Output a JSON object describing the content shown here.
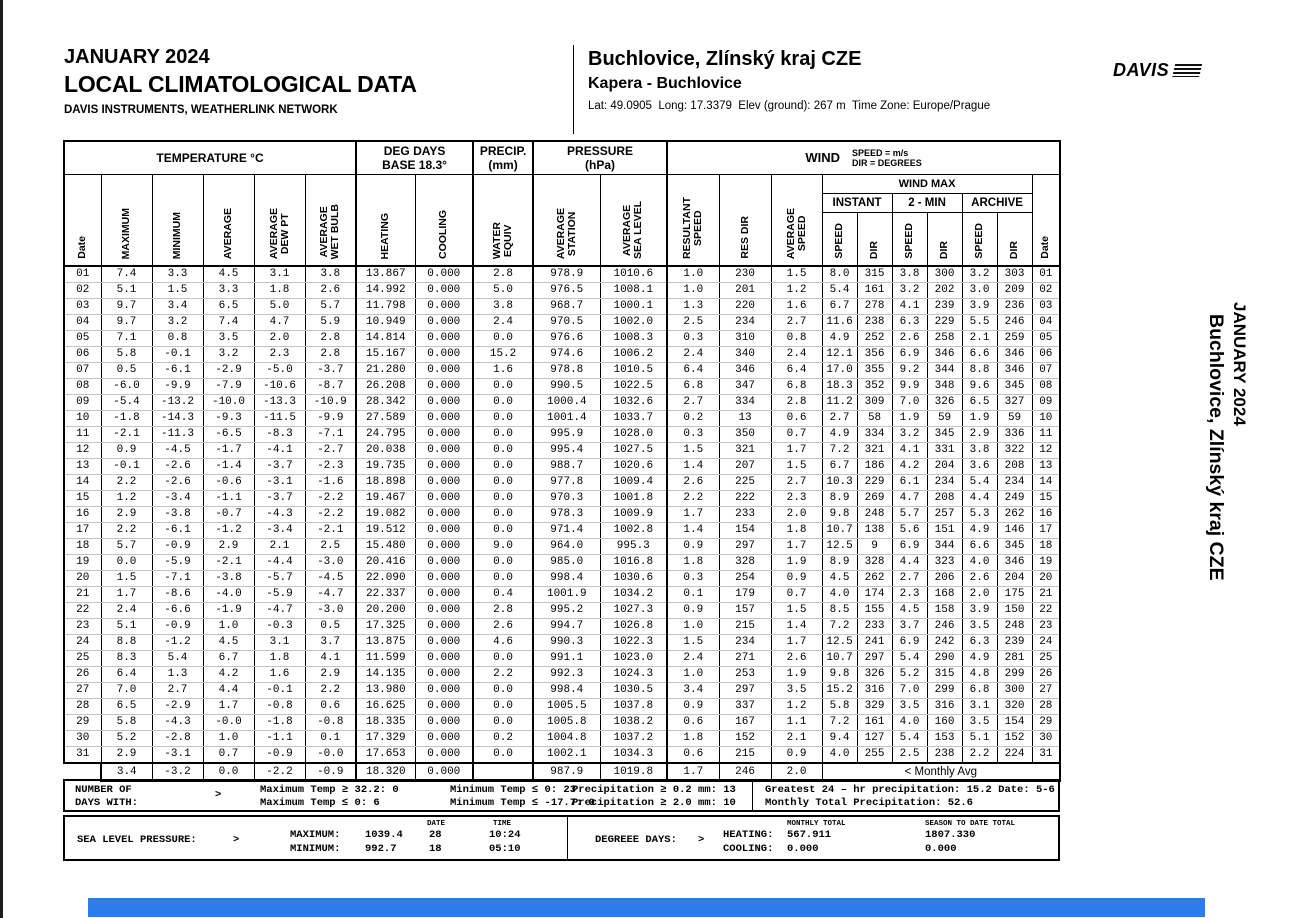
{
  "header": {
    "month": "JANUARY 2024",
    "title": "LOCAL CLIMATOLOGICAL DATA",
    "subtitle": "DAVIS INSTRUMENTS, WEATHERLINK NETWORK",
    "station_name": "Buchlovice, Zlínský kraj CZE",
    "station_sub": "Kapera - Buchlovice",
    "station_meta": "Lat: 49.0905  Long: 17.3379  Elev (ground): 267 m  Time Zone: Europe/Prague",
    "logo_text": "DAVIS"
  },
  "table": {
    "groups": {
      "temperature": "TEMPERATURE °C",
      "deg_days": "DEG DAYS\nBASE 18.3°",
      "precip": "PRECIP.\n(mm)",
      "pressure": "PRESSURE\n(hPa)",
      "wind": "WIND",
      "wind_units": "SPEED = m/s\nDIR = DEGREES"
    },
    "columns": {
      "date": "Date",
      "maximum": "MAXIMUM",
      "minimum": "MINIMUM",
      "average": "AVERAGE",
      "avg_dew_pt": "AVERAGE\nDEW PT",
      "avg_wet_bulb": "AVERAGE\nWET BULB",
      "heating": "HEATING",
      "cooling": "COOLING",
      "water_equiv": "WATER\nEQUIV",
      "avg_station": "AVERAGE\nSTATION",
      "avg_sea_level": "AVERAGE\nSEA LEVEL",
      "resultant_speed": "RESULTANT\nSPEED",
      "res_dir": "RES DIR",
      "avg_speed": "AVERAGE\nSPEED",
      "wind_max": "WIND MAX",
      "instant": "INSTANT",
      "two_min": "2 - MIN",
      "archive": "ARCHIVE",
      "speed": "SPEED",
      "dir": "DIR"
    },
    "rows": [
      [
        "01",
        "7.4",
        "3.3",
        "4.5",
        "3.1",
        "3.8",
        "13.867",
        "0.000",
        "2.8",
        "978.9",
        "1010.6",
        "1.0",
        "230",
        "1.5",
        "8.0",
        "315",
        "3.8",
        "300",
        "3.2",
        "303",
        "01"
      ],
      [
        "02",
        "5.1",
        "1.5",
        "3.3",
        "1.8",
        "2.6",
        "14.992",
        "0.000",
        "5.0",
        "976.5",
        "1008.1",
        "1.0",
        "201",
        "1.2",
        "5.4",
        "161",
        "3.2",
        "202",
        "3.0",
        "209",
        "02"
      ],
      [
        "03",
        "9.7",
        "3.4",
        "6.5",
        "5.0",
        "5.7",
        "11.798",
        "0.000",
        "3.8",
        "968.7",
        "1000.1",
        "1.3",
        "220",
        "1.6",
        "6.7",
        "278",
        "4.1",
        "239",
        "3.9",
        "236",
        "03"
      ],
      [
        "04",
        "9.7",
        "3.2",
        "7.4",
        "4.7",
        "5.9",
        "10.949",
        "0.000",
        "2.4",
        "970.5",
        "1002.0",
        "2.5",
        "234",
        "2.7",
        "11.6",
        "238",
        "6.3",
        "229",
        "5.5",
        "246",
        "04"
      ],
      [
        "05",
        "7.1",
        "0.8",
        "3.5",
        "2.0",
        "2.8",
        "14.814",
        "0.000",
        "0.0",
        "976.6",
        "1008.3",
        "0.3",
        "310",
        "0.8",
        "4.9",
        "252",
        "2.6",
        "258",
        "2.1",
        "259",
        "05"
      ],
      [
        "06",
        "5.8",
        "-0.1",
        "3.2",
        "2.3",
        "2.8",
        "15.167",
        "0.000",
        "15.2",
        "974.6",
        "1006.2",
        "2.4",
        "340",
        "2.4",
        "12.1",
        "356",
        "6.9",
        "346",
        "6.6",
        "346",
        "06"
      ],
      [
        "07",
        "0.5",
        "-6.1",
        "-2.9",
        "-5.0",
        "-3.7",
        "21.280",
        "0.000",
        "1.6",
        "978.8",
        "1010.5",
        "6.4",
        "346",
        "6.4",
        "17.0",
        "355",
        "9.2",
        "344",
        "8.8",
        "346",
        "07"
      ],
      [
        "08",
        "-6.0",
        "-9.9",
        "-7.9",
        "-10.6",
        "-8.7",
        "26.208",
        "0.000",
        "0.0",
        "990.5",
        "1022.5",
        "6.8",
        "347",
        "6.8",
        "18.3",
        "352",
        "9.9",
        "348",
        "9.6",
        "345",
        "08"
      ],
      [
        "09",
        "-5.4",
        "-13.2",
        "-10.0",
        "-13.3",
        "-10.9",
        "28.342",
        "0.000",
        "0.0",
        "1000.4",
        "1032.6",
        "2.7",
        "334",
        "2.8",
        "11.2",
        "309",
        "7.0",
        "326",
        "6.5",
        "327",
        "09"
      ],
      [
        "10",
        "-1.8",
        "-14.3",
        "-9.3",
        "-11.5",
        "-9.9",
        "27.589",
        "0.000",
        "0.0",
        "1001.4",
        "1033.7",
        "0.2",
        "13",
        "0.6",
        "2.7",
        "58",
        "1.9",
        "59",
        "1.9",
        "59",
        "10"
      ],
      [
        "11",
        "-2.1",
        "-11.3",
        "-6.5",
        "-8.3",
        "-7.1",
        "24.795",
        "0.000",
        "0.0",
        "995.9",
        "1028.0",
        "0.3",
        "350",
        "0.7",
        "4.9",
        "334",
        "3.2",
        "345",
        "2.9",
        "336",
        "11"
      ],
      [
        "12",
        "0.9",
        "-4.5",
        "-1.7",
        "-4.1",
        "-2.7",
        "20.038",
        "0.000",
        "0.0",
        "995.4",
        "1027.5",
        "1.5",
        "321",
        "1.7",
        "7.2",
        "321",
        "4.1",
        "331",
        "3.8",
        "322",
        "12"
      ],
      [
        "13",
        "-0.1",
        "-2.6",
        "-1.4",
        "-3.7",
        "-2.3",
        "19.735",
        "0.000",
        "0.0",
        "988.7",
        "1020.6",
        "1.4",
        "207",
        "1.5",
        "6.7",
        "186",
        "4.2",
        "204",
        "3.6",
        "208",
        "13"
      ],
      [
        "14",
        "2.2",
        "-2.6",
        "-0.6",
        "-3.1",
        "-1.6",
        "18.898",
        "0.000",
        "0.0",
        "977.8",
        "1009.4",
        "2.6",
        "225",
        "2.7",
        "10.3",
        "229",
        "6.1",
        "234",
        "5.4",
        "234",
        "14"
      ],
      [
        "15",
        "1.2",
        "-3.4",
        "-1.1",
        "-3.7",
        "-2.2",
        "19.467",
        "0.000",
        "0.0",
        "970.3",
        "1001.8",
        "2.2",
        "222",
        "2.3",
        "8.9",
        "269",
        "4.7",
        "208",
        "4.4",
        "249",
        "15"
      ],
      [
        "16",
        "2.9",
        "-3.8",
        "-0.7",
        "-4.3",
        "-2.2",
        "19.082",
        "0.000",
        "0.0",
        "978.3",
        "1009.9",
        "1.7",
        "233",
        "2.0",
        "9.8",
        "248",
        "5.7",
        "257",
        "5.3",
        "262",
        "16"
      ],
      [
        "17",
        "2.2",
        "-6.1",
        "-1.2",
        "-3.4",
        "-2.1",
        "19.512",
        "0.000",
        "0.0",
        "971.4",
        "1002.8",
        "1.4",
        "154",
        "1.8",
        "10.7",
        "138",
        "5.6",
        "151",
        "4.9",
        "146",
        "17"
      ],
      [
        "18",
        "5.7",
        "-0.9",
        "2.9",
        "2.1",
        "2.5",
        "15.480",
        "0.000",
        "9.0",
        "964.0",
        "995.3",
        "0.9",
        "297",
        "1.7",
        "12.5",
        "9",
        "6.9",
        "344",
        "6.6",
        "345",
        "18"
      ],
      [
        "19",
        "0.0",
        "-5.9",
        "-2.1",
        "-4.4",
        "-3.0",
        "20.416",
        "0.000",
        "0.0",
        "985.0",
        "1016.8",
        "1.8",
        "328",
        "1.9",
        "8.9",
        "328",
        "4.4",
        "323",
        "4.0",
        "346",
        "19"
      ],
      [
        "20",
        "1.5",
        "-7.1",
        "-3.8",
        "-5.7",
        "-4.5",
        "22.090",
        "0.000",
        "0.0",
        "998.4",
        "1030.6",
        "0.3",
        "254",
        "0.9",
        "4.5",
        "262",
        "2.7",
        "206",
        "2.6",
        "204",
        "20"
      ],
      [
        "21",
        "1.7",
        "-8.6",
        "-4.0",
        "-5.9",
        "-4.7",
        "22.337",
        "0.000",
        "0.4",
        "1001.9",
        "1034.2",
        "0.1",
        "179",
        "0.7",
        "4.0",
        "174",
        "2.3",
        "168",
        "2.0",
        "175",
        "21"
      ],
      [
        "22",
        "2.4",
        "-6.6",
        "-1.9",
        "-4.7",
        "-3.0",
        "20.200",
        "0.000",
        "2.8",
        "995.2",
        "1027.3",
        "0.9",
        "157",
        "1.5",
        "8.5",
        "155",
        "4.5",
        "158",
        "3.9",
        "150",
        "22"
      ],
      [
        "23",
        "5.1",
        "-0.9",
        "1.0",
        "-0.3",
        "0.5",
        "17.325",
        "0.000",
        "2.6",
        "994.7",
        "1026.8",
        "1.0",
        "215",
        "1.4",
        "7.2",
        "233",
        "3.7",
        "246",
        "3.5",
        "248",
        "23"
      ],
      [
        "24",
        "8.8",
        "-1.2",
        "4.5",
        "3.1",
        "3.7",
        "13.875",
        "0.000",
        "4.6",
        "990.3",
        "1022.3",
        "1.5",
        "234",
        "1.7",
        "12.5",
        "241",
        "6.9",
        "242",
        "6.3",
        "239",
        "24"
      ],
      [
        "25",
        "8.3",
        "5.4",
        "6.7",
        "1.8",
        "4.1",
        "11.599",
        "0.000",
        "0.0",
        "991.1",
        "1023.0",
        "2.4",
        "271",
        "2.6",
        "10.7",
        "297",
        "5.4",
        "290",
        "4.9",
        "281",
        "25"
      ],
      [
        "26",
        "6.4",
        "1.3",
        "4.2",
        "1.6",
        "2.9",
        "14.135",
        "0.000",
        "2.2",
        "992.3",
        "1024.3",
        "1.0",
        "253",
        "1.9",
        "9.8",
        "326",
        "5.2",
        "315",
        "4.8",
        "299",
        "26"
      ],
      [
        "27",
        "7.0",
        "2.7",
        "4.4",
        "-0.1",
        "2.2",
        "13.980",
        "0.000",
        "0.0",
        "998.4",
        "1030.5",
        "3.4",
        "297",
        "3.5",
        "15.2",
        "316",
        "7.0",
        "299",
        "6.8",
        "300",
        "27"
      ],
      [
        "28",
        "6.5",
        "-2.9",
        "1.7",
        "-0.8",
        "0.6",
        "16.625",
        "0.000",
        "0.0",
        "1005.5",
        "1037.8",
        "0.9",
        "337",
        "1.2",
        "5.8",
        "329",
        "3.5",
        "316",
        "3.1",
        "320",
        "28"
      ],
      [
        "29",
        "5.8",
        "-4.3",
        "-0.0",
        "-1.8",
        "-0.8",
        "18.335",
        "0.000",
        "0.0",
        "1005.8",
        "1038.2",
        "0.6",
        "167",
        "1.1",
        "7.2",
        "161",
        "4.0",
        "160",
        "3.5",
        "154",
        "29"
      ],
      [
        "30",
        "5.2",
        "-2.8",
        "1.0",
        "-1.1",
        "0.1",
        "17.329",
        "0.000",
        "0.2",
        "1004.8",
        "1037.2",
        "1.8",
        "152",
        "2.1",
        "9.4",
        "127",
        "5.4",
        "153",
        "5.1",
        "152",
        "30"
      ],
      [
        "31",
        "2.9",
        "-3.1",
        "0.7",
        "-0.9",
        "-0.0",
        "17.653",
        "0.000",
        "0.0",
        "1002.1",
        "1034.3",
        "0.6",
        "215",
        "0.9",
        "4.0",
        "255",
        "2.5",
        "238",
        "2.2",
        "224",
        "31"
      ]
    ],
    "monthly_avg": {
      "values": [
        "",
        "3.4",
        "-3.2",
        "0.0",
        "-2.2",
        "-0.9",
        "18.320",
        "0.000",
        "",
        "987.9",
        "1019.8",
        "1.7",
        "246",
        "2.0"
      ],
      "label": "< Monthly Avg"
    }
  },
  "summary": {
    "label_line1": "NUMBER OF",
    "label_line2": "DAYS WITH:",
    "arrow": ">",
    "col1_line1": "Maximum Temp ≥ 32.2: 0",
    "col1_line2": "Maximum Temp ≤ 0: 6",
    "col2_line1": "Minimum Temp ≤ 0: 23",
    "col2_line2": "Minimum Temp ≤ -17.7: 0",
    "col3_line1": "Precipitation ≥ 0.2 mm: 13",
    "col3_line2": "Precipitation ≥ 2.0 mm: 10",
    "col4_line1": "Greatest 24 – hr precipitation: 15.2 Date: 5-6",
    "col4_line2": "Monthly Total Precipitation: 52.6"
  },
  "pressure_box": {
    "label": "SEA LEVEL PRESSURE:",
    "arrow": ">",
    "date_header": "DATE",
    "time_header": "TIME",
    "max_label": "MAXIMUM:",
    "max_value": "1039.4",
    "max_date": "28",
    "max_time": "10:24",
    "min_label": "MINIMUM:",
    "min_value": "992.7",
    "min_date": "18",
    "min_time": "05:10"
  },
  "degree_box": {
    "label": "DEGREEE DAYS:",
    "arrow": ">",
    "monthly_header": "MONTHLY TOTAL",
    "season_header": "SEASON TO DATE TOTAL",
    "heating_label": "HEATING:",
    "heating_monthly": "567.911",
    "heating_season": "1807.330",
    "cooling_label": "COOLING:",
    "cooling_monthly": "0.000",
    "cooling_season": "0.000"
  },
  "sidebar": {
    "month": "JANUARY 2024",
    "station": "Buchlovice, Zlínský kraj CZE"
  },
  "footer": {
    "bar_color": "#2b7de9"
  }
}
